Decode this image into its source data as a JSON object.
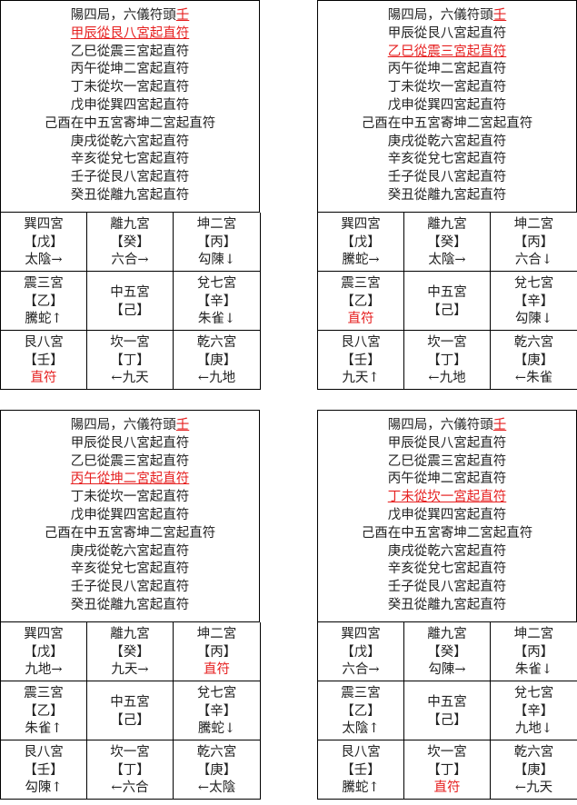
{
  "panels": [
    {
      "title_prefix": "陽四局，六儀符頭",
      "title_stem": "壬",
      "highlight": 1,
      "lines": [
        "甲辰從艮八宮起直符",
        "乙巳從震三宮起直符",
        "丙午從坤二宮起直符",
        "丁未從坎一宮起直符",
        "戊申從巽四宮起直符",
        "己酉在中五宮寄坤二宮起直符",
        "庚戌從乾六宮起直符",
        "辛亥從兌七宮起直符",
        "壬子從艮八宮起直符",
        "癸丑從離九宮起直符"
      ],
      "cells": [
        {
          "palace": "巽四宮",
          "stem": "【戊】",
          "god": "太陰→"
        },
        {
          "palace": "離九宮",
          "stem": "【癸】",
          "god": "六合→"
        },
        {
          "palace": "坤二宮",
          "stem": "【丙】",
          "god": "勾陳↓"
        },
        {
          "palace": "震三宮",
          "stem": "【乙】",
          "god": "騰蛇↑"
        },
        {
          "palace": "中五宮",
          "stem": "【己】",
          "god": ""
        },
        {
          "palace": "兌七宮",
          "stem": "【辛】",
          "god": "朱雀↓"
        },
        {
          "palace": "艮八宮",
          "stem": "【壬】",
          "god": "直符",
          "red": true
        },
        {
          "palace": "坎一宮",
          "stem": "【丁】",
          "god": "←九天"
        },
        {
          "palace": "乾六宮",
          "stem": "【庚】",
          "god": "←九地"
        }
      ]
    },
    {
      "title_prefix": "陽四局，六儀符頭",
      "title_stem": "壬",
      "highlight": 2,
      "lines": [
        "甲辰從艮八宮起直符",
        "乙巳從震三宮起直符",
        "丙午從坤二宮起直符",
        "丁未從坎一宮起直符",
        "戊申從巽四宮起直符",
        "己酉在中五宮寄坤二宮起直符",
        "庚戌從乾六宮起直符",
        "辛亥從兌七宮起直符",
        "壬子從艮八宮起直符",
        "癸丑從離九宮起直符"
      ],
      "cells": [
        {
          "palace": "巽四宮",
          "stem": "【戊】",
          "god": "騰蛇→"
        },
        {
          "palace": "離九宮",
          "stem": "【癸】",
          "god": "太陰→"
        },
        {
          "palace": "坤二宮",
          "stem": "【丙】",
          "god": "六合↓"
        },
        {
          "palace": "震三宮",
          "stem": "【乙】",
          "god": "直符",
          "red": true
        },
        {
          "palace": "中五宮",
          "stem": "【己】",
          "god": ""
        },
        {
          "palace": "兌七宮",
          "stem": "【辛】",
          "god": "勾陳↓"
        },
        {
          "palace": "艮八宮",
          "stem": "【壬】",
          "god": "九天↑"
        },
        {
          "palace": "坎一宮",
          "stem": "【丁】",
          "god": "←九地"
        },
        {
          "palace": "乾六宮",
          "stem": "【庚】",
          "god": "←朱雀"
        }
      ]
    },
    {
      "title_prefix": "陽四局，六儀符頭",
      "title_stem": "壬",
      "highlight": 3,
      "lines": [
        "甲辰從艮八宮起直符",
        "乙巳從震三宮起直符",
        "丙午從坤二宮起直符",
        "丁未從坎一宮起直符",
        "戊申從巽四宮起直符",
        "己酉在中五宮寄坤二宮起直符",
        "庚戌從乾六宮起直符",
        "辛亥從兌七宮起直符",
        "壬子從艮八宮起直符",
        "癸丑從離九宮起直符"
      ],
      "cells": [
        {
          "palace": "巽四宮",
          "stem": "【戊】",
          "god": "九地→"
        },
        {
          "palace": "離九宮",
          "stem": "【癸】",
          "god": "九天→"
        },
        {
          "palace": "坤二宮",
          "stem": "【丙】",
          "god": "直符",
          "red": true
        },
        {
          "palace": "震三宮",
          "stem": "【乙】",
          "god": "朱雀↑"
        },
        {
          "palace": "中五宮",
          "stem": "【己】",
          "god": ""
        },
        {
          "palace": "兌七宮",
          "stem": "【辛】",
          "god": "騰蛇↓"
        },
        {
          "palace": "艮八宮",
          "stem": "【壬】",
          "god": "勾陳↑"
        },
        {
          "palace": "坎一宮",
          "stem": "【丁】",
          "god": "←六合"
        },
        {
          "palace": "乾六宮",
          "stem": "【庚】",
          "god": "←太陰"
        }
      ]
    },
    {
      "title_prefix": "陽四局，六儀符頭",
      "title_stem": "壬",
      "highlight": 4,
      "lines": [
        "甲辰從艮八宮起直符",
        "乙巳從震三宮起直符",
        "丙午從坤二宮起直符",
        "丁未從坎一宮起直符",
        "戊申從巽四宮起直符",
        "己酉在中五宮寄坤二宮起直符",
        "庚戌從乾六宮起直符",
        "辛亥從兌七宮起直符",
        "壬子從艮八宮起直符",
        "癸丑從離九宮起直符"
      ],
      "cells": [
        {
          "palace": "巽四宮",
          "stem": "【戊】",
          "god": "六合→"
        },
        {
          "palace": "離九宮",
          "stem": "【癸】",
          "god": "勾陳→"
        },
        {
          "palace": "坤二宮",
          "stem": "【丙】",
          "god": "朱雀↓"
        },
        {
          "palace": "震三宮",
          "stem": "【乙】",
          "god": "太陰↑"
        },
        {
          "palace": "中五宮",
          "stem": "【己】",
          "god": ""
        },
        {
          "palace": "兌七宮",
          "stem": "【辛】",
          "god": "九地↓"
        },
        {
          "palace": "艮八宮",
          "stem": "【壬】",
          "god": "騰蛇↑"
        },
        {
          "palace": "坎一宮",
          "stem": "【丁】",
          "god": "直符",
          "red": true
        },
        {
          "palace": "乾六宮",
          "stem": "【庚】",
          "god": "←九天"
        }
      ]
    }
  ],
  "colors": {
    "highlight": "#e62020",
    "border": "#000000"
  }
}
